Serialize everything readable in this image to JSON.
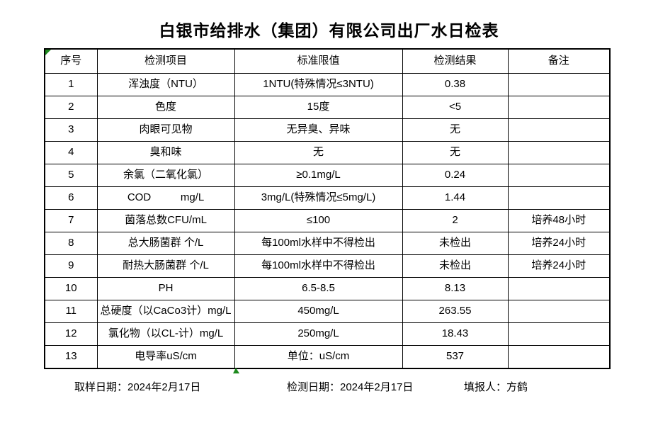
{
  "title": "白银市给排水（集团）有限公司出厂水日检表",
  "colors": {
    "background": "#ffffff",
    "text": "#000000",
    "border": "#000000",
    "marker_green": "#1e8a1e"
  },
  "markers": {
    "top_left": "excel-green-corner-triangle",
    "bottom": "excel-green-fill-handle-triangle"
  },
  "table": {
    "headers": [
      "序号",
      "检测项目",
      "标准限值",
      "检测结果",
      "备注"
    ],
    "rows": [
      {
        "no": "1",
        "item": "浑浊度（NTU）",
        "limit": "1NTU(特殊情况≤3NTU)",
        "result": "0.38",
        "remark": ""
      },
      {
        "no": "2",
        "item": "色度",
        "limit": "15度",
        "result": "<5",
        "remark": ""
      },
      {
        "no": "3",
        "item": "肉眼可见物",
        "limit": "无异臭、异味",
        "result": "无",
        "remark": ""
      },
      {
        "no": "4",
        "item": "臭和味",
        "limit": "无",
        "result": "无",
        "remark": ""
      },
      {
        "no": "5",
        "item": "余氯（二氧化氯）",
        "limit": "≥0.1mg/L",
        "result": "0.24",
        "remark": ""
      },
      {
        "no": "6",
        "item": "COD          mg/L",
        "limit": "3mg/L(特殊情况≤5mg/L)",
        "result": "1.44",
        "remark": ""
      },
      {
        "no": "7",
        "item": "菌落总数CFU/mL",
        "limit": "≤100",
        "result": "2",
        "remark": "培养48小时"
      },
      {
        "no": "8",
        "item": "总大肠菌群 个/L",
        "limit": "每100ml水样中不得检出",
        "result": "未检出",
        "remark": "培养24小时"
      },
      {
        "no": "9",
        "item": "耐热大肠菌群 个/L",
        "limit": "每100ml水样中不得检出",
        "result": "未检出",
        "remark": "培养24小时"
      },
      {
        "no": "10",
        "item": "PH",
        "limit": "6.5-8.5",
        "result": "8.13",
        "remark": ""
      },
      {
        "no": "11",
        "item": "总硬度（以CaCo3计）mg/L",
        "limit": "450mg/L",
        "result": "263.55",
        "remark": ""
      },
      {
        "no": "12",
        "item": "氯化物（以CL-计）mg/L",
        "limit": "250mg/L",
        "result": "18.43",
        "remark": ""
      },
      {
        "no": "13",
        "item": "电导率uS/cm",
        "limit": "单位：uS/cm",
        "result": "537",
        "remark": ""
      }
    ]
  },
  "footer": {
    "sampling_date": "取样日期：2024年2月17日",
    "test_date": "检测日期：2024年2月17日",
    "reporter": "填报人：方鹤"
  }
}
